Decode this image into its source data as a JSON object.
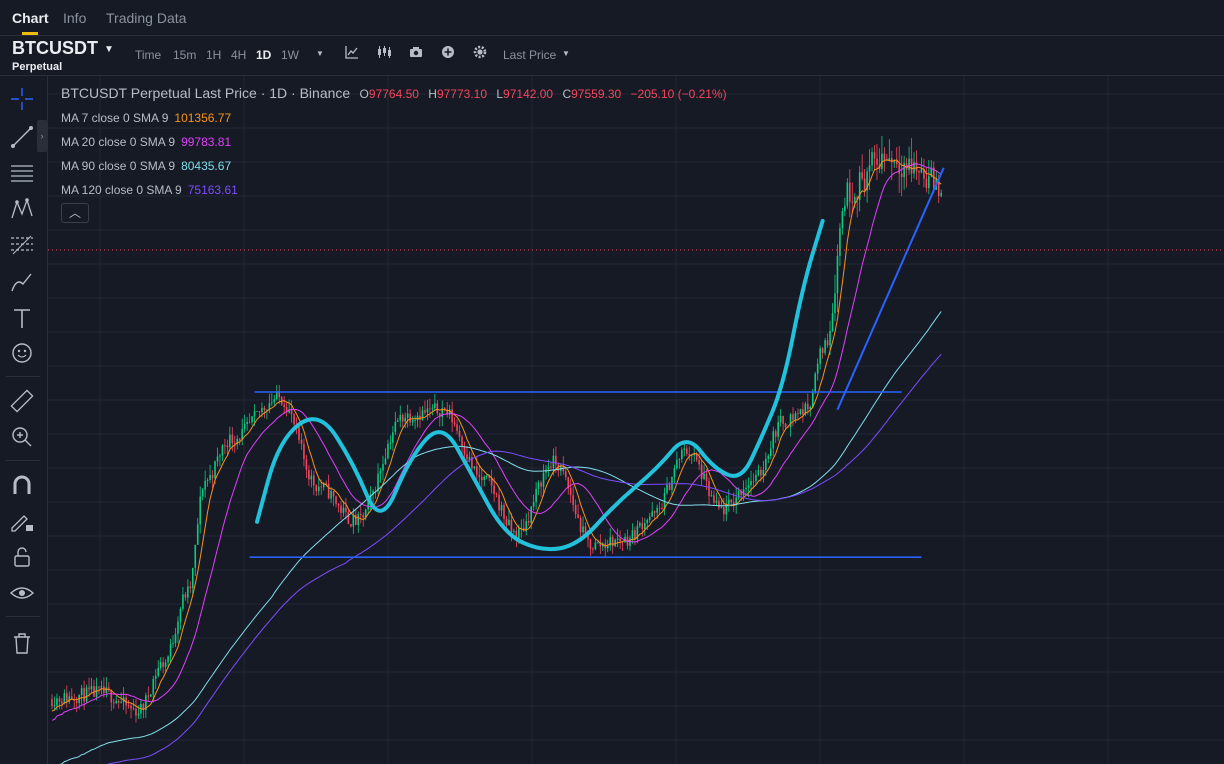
{
  "tabs": [
    {
      "label": "Chart",
      "active": true
    },
    {
      "label": "Info",
      "active": false
    },
    {
      "label": "Trading Data",
      "active": false
    }
  ],
  "toolbar": {
    "symbol": "BTCUSDT",
    "subtitle": "Perpetual",
    "intervals": [
      "Time",
      "15m",
      "1H",
      "4H",
      "1D",
      "1W"
    ],
    "active_interval": "1D",
    "price_type": "Last Price",
    "icons": [
      "chevron-down-icon",
      "indicator-icon",
      "candle-type-icon",
      "camera-icon",
      "add-icon",
      "settings-icon"
    ]
  },
  "sidebar": {
    "tools": [
      "crosshair-icon",
      "trendline-icon",
      "horizontal-lines-icon",
      "pattern-icon",
      "fib-icon",
      "brush-icon",
      "text-icon",
      "emoji-icon",
      "ruler-icon",
      "zoom-in-icon",
      "magnet-icon",
      "lock-pencil-icon",
      "lock-icon",
      "eye-icon",
      "trash-icon"
    ]
  },
  "legend": {
    "title": "BTCUSDT Perpetual Last Price · 1D · Binance",
    "ohlc": [
      {
        "label": "O",
        "value": "97764.50"
      },
      {
        "label": "H",
        "value": "97773.10"
      },
      {
        "label": "L",
        "value": "97142.00"
      },
      {
        "label": "C",
        "value": "97559.30"
      }
    ],
    "change": "−205.10 (−0.21%)",
    "ma": [
      {
        "label": "MA 7 close 0 SMA 9",
        "value": "101356.77",
        "color": "#f7931a"
      },
      {
        "label": "MA 20 close 0 SMA 9",
        "value": "99783.81",
        "color": "#e040fb"
      },
      {
        "label": "MA 90 close 0 SMA 9",
        "value": "80435.67",
        "color": "#80deea"
      },
      {
        "label": "MA 120 close 0 SMA 9",
        "value": "75163.61",
        "color": "#7c4dff"
      }
    ],
    "toggle_icon": "chevron-up-icon"
  },
  "colors": {
    "up": "#0ecb81",
    "down": "#f6465d",
    "background": "#161a25",
    "grid": "#232733",
    "range_line": "#2962ff",
    "pattern_path": "#22c1dc",
    "last_price_line": "#f6465d"
  },
  "chart_data": {
    "type": "candlestick",
    "symbol": "BTCUSDT Perpetual",
    "interval": "1D",
    "close_path": [
      {
        "i": 0,
        "c": 0.08
      },
      {
        "i": 20,
        "c": 0.09
      },
      {
        "i": 35,
        "c": 0.06
      },
      {
        "i": 45,
        "c": 0.14
      },
      {
        "i": 55,
        "c": 0.26
      },
      {
        "i": 62,
        "c": 0.45
      },
      {
        "i": 72,
        "c": 0.52
      },
      {
        "i": 92,
        "c": 0.59
      },
      {
        "i": 108,
        "c": 0.44
      },
      {
        "i": 123,
        "c": 0.38
      },
      {
        "i": 143,
        "c": 0.56
      },
      {
        "i": 158,
        "c": 0.57
      },
      {
        "i": 175,
        "c": 0.45
      },
      {
        "i": 188,
        "c": 0.36
      },
      {
        "i": 203,
        "c": 0.48
      },
      {
        "i": 219,
        "c": 0.34
      },
      {
        "i": 232,
        "c": 0.35
      },
      {
        "i": 243,
        "c": 0.39
      },
      {
        "i": 257,
        "c": 0.5
      },
      {
        "i": 271,
        "c": 0.4
      },
      {
        "i": 284,
        "c": 0.45
      },
      {
        "i": 296,
        "c": 0.55
      },
      {
        "i": 305,
        "c": 0.57
      },
      {
        "i": 313,
        "c": 0.68
      },
      {
        "i": 322,
        "c": 0.94
      },
      {
        "i": 338,
        "c": 1.0
      },
      {
        "i": 349,
        "c": 0.98
      },
      {
        "i": 360,
        "c": 0.95
      }
    ],
    "annotations": {
      "range_top": 0.6,
      "range_bottom": 0.32,
      "trendline": "rising channel support",
      "pattern": "wave drawing inside the range"
    }
  }
}
